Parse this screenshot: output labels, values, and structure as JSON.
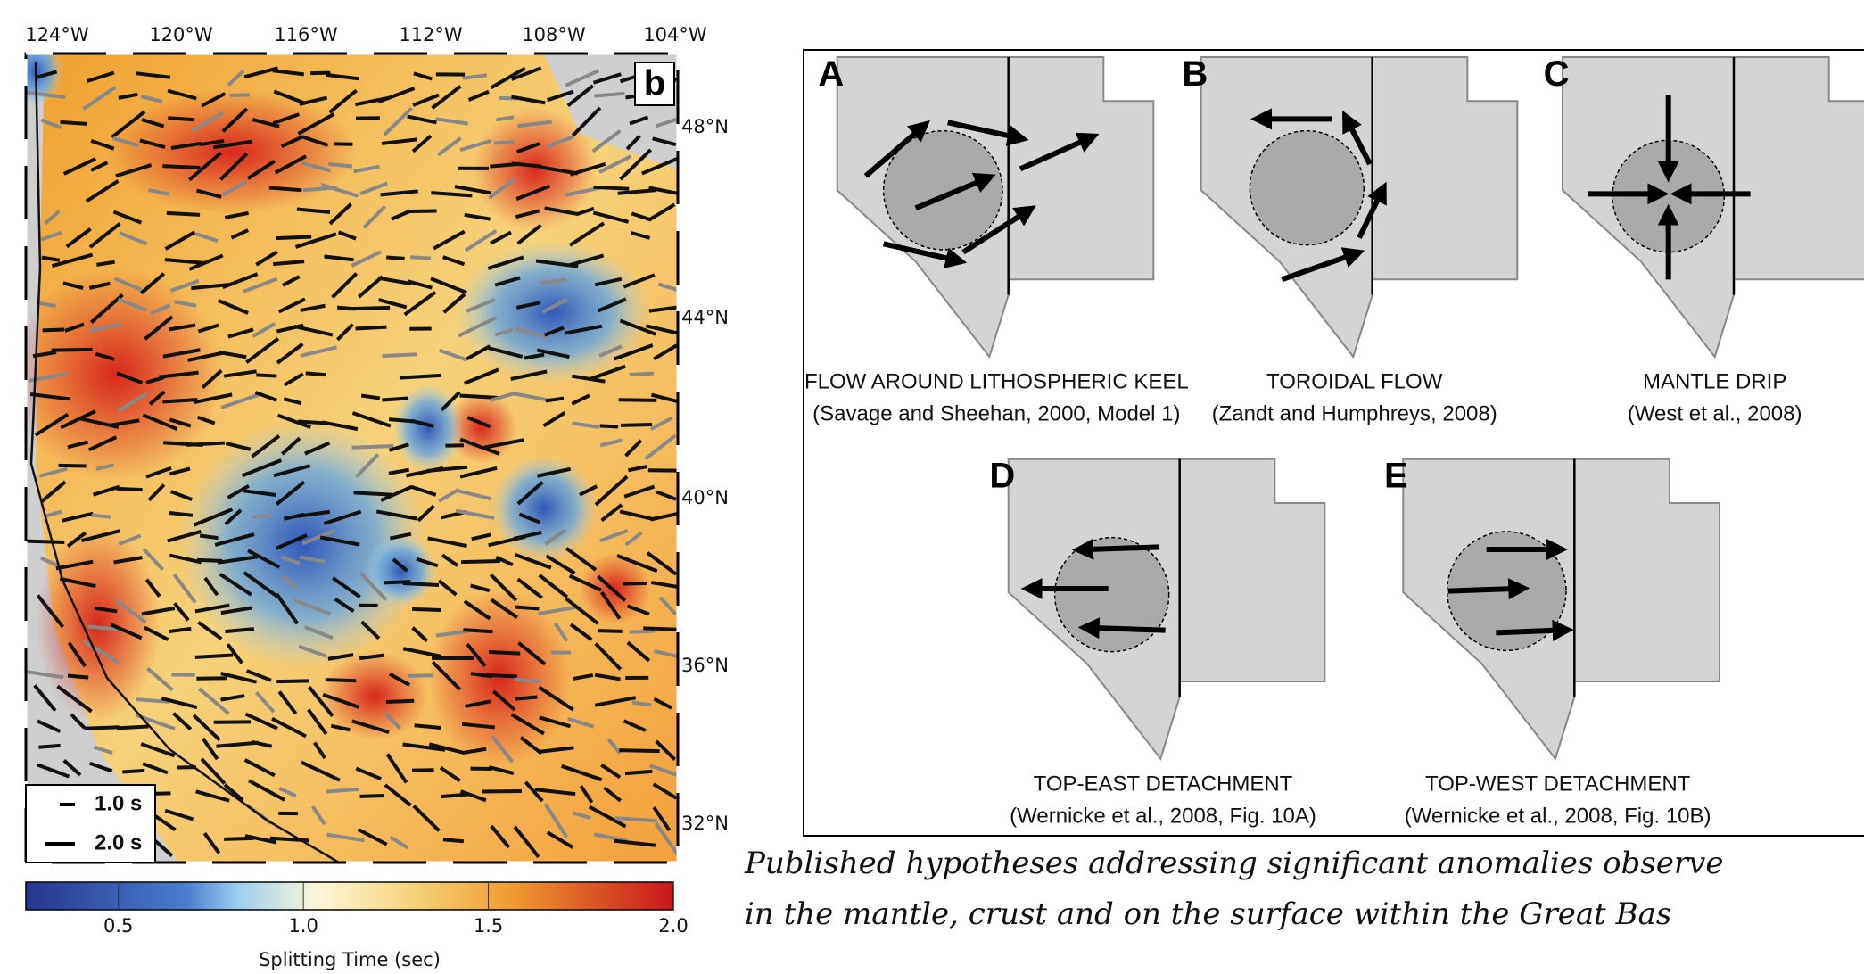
{
  "map": {
    "panel_label": "b",
    "lon_labels": [
      "124°W",
      "120°W",
      "116°W",
      "112°W",
      "108°W",
      "104°W"
    ],
    "lat_labels": [
      "48°N",
      "44°N",
      "40°N",
      "36°N",
      "32°N"
    ],
    "legend": [
      "1.0 s",
      "2.0 s"
    ],
    "colorbar": {
      "range": [
        0.25,
        2.0
      ],
      "ticks": [
        0.5,
        {
          "value": 1,
          "label": "1.0"
        },
        1.5,
        {
          "value": 2,
          "label": "2.0"
        }
      ],
      "label": "Splitting Time (sec)"
    }
  },
  "diagram": {
    "panels": [
      {
        "letter": "A",
        "title": "FLOW AROUND LITHOSPHERIC KEEL",
        "citation": "(Savage and Sheehan, 2000, Model 1)"
      },
      {
        "letter": "B",
        "title": "TOROIDAL FLOW",
        "citation": "(Zandt and Humphreys, 2008)"
      },
      {
        "letter": "C",
        "title": "MANTLE DRIP",
        "citation": "(West et al., 2008)"
      },
      {
        "letter": "D",
        "title": "TOP-EAST DETACHMENT",
        "citation": "(Wernicke et al., 2008, Fig. 10A)"
      },
      {
        "letter": "E",
        "title": "TOP-WEST DETACHMENT",
        "citation": "(Wernicke et al., 2008, Fig. 10B)"
      }
    ]
  },
  "caption": [
    "Published hypotheses addressing significant anomalies observe",
    "in the mantle, crust and on the surface within the Great Bas"
  ]
}
